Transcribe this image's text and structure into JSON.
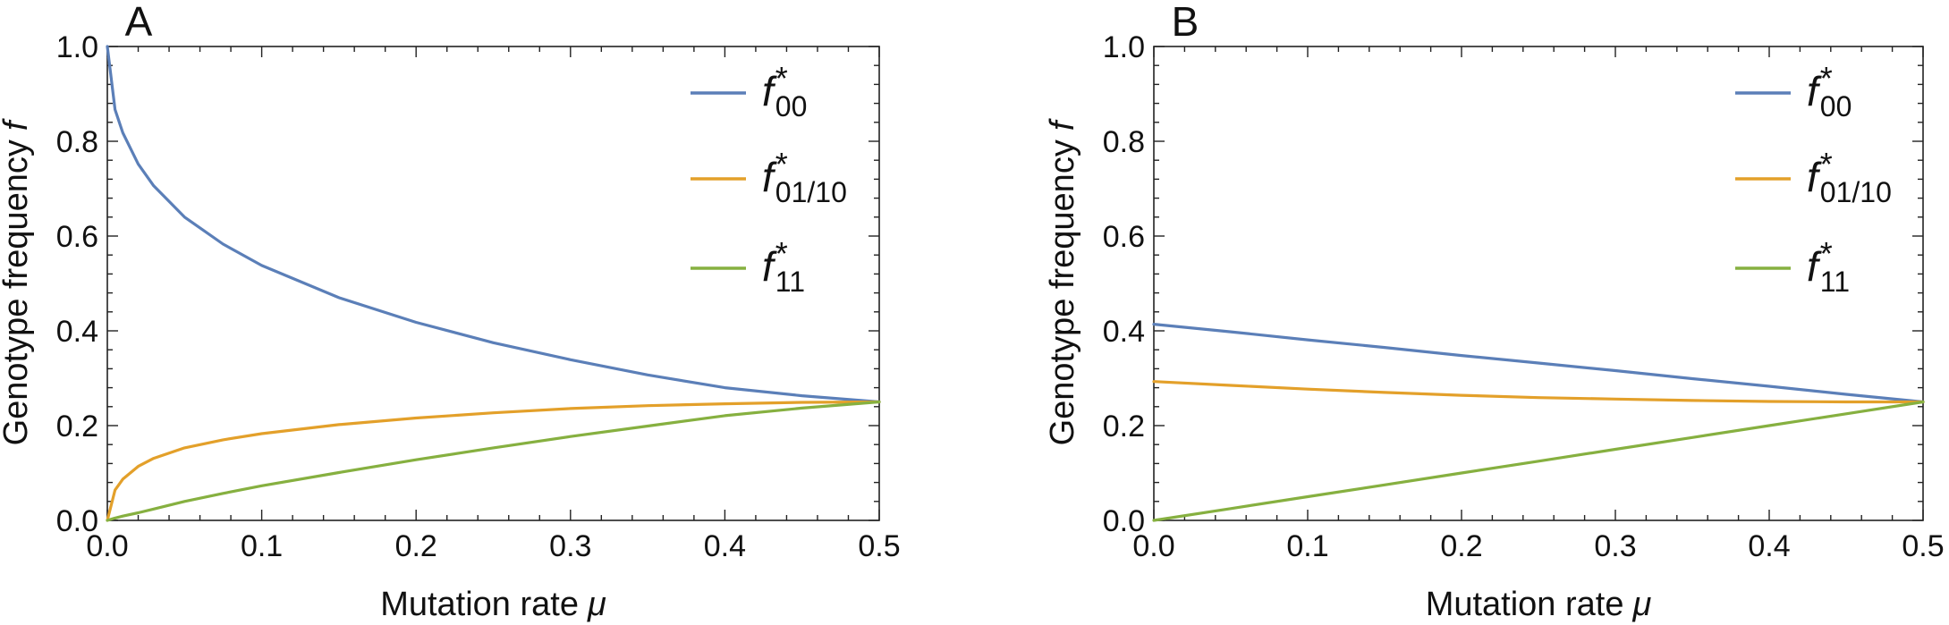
{
  "colors": {
    "f00": "#5b7fb8",
    "f01": "#e3a02a",
    "f11": "#86b040"
  },
  "chart_data": [
    {
      "type": "line",
      "panel_label": "A",
      "xlabel": "Mutation rate",
      "xlabel_symbol": "μ",
      "ylabel": "Genotype frequency",
      "ylabel_symbol": "f",
      "xlim": [
        0,
        0.5
      ],
      "ylim": [
        0,
        1.0
      ],
      "xticks": [
        "0.0",
        "0.1",
        "0.2",
        "0.3",
        "0.4",
        "0.5"
      ],
      "yticks": [
        "0.0",
        "0.2",
        "0.4",
        "0.6",
        "0.8",
        "1.0"
      ],
      "legend_position": "top-right",
      "x": [
        0,
        0.005,
        0.01,
        0.02,
        0.03,
        0.05,
        0.075,
        0.1,
        0.15,
        0.2,
        0.25,
        0.3,
        0.35,
        0.4,
        0.45,
        0.5
      ],
      "series": [
        {
          "key": "f00",
          "name_base": "f",
          "name_sup": "*",
          "name_sub": "00",
          "color": "#5b7fb8",
          "values": [
            1.0,
            0.867,
            0.818,
            0.752,
            0.706,
            0.64,
            0.583,
            0.538,
            0.47,
            0.418,
            0.375,
            0.339,
            0.307,
            0.28,
            0.263,
            0.25
          ]
        },
        {
          "key": "f01",
          "name_base": "f",
          "name_sup": "*",
          "name_sub": "01/10",
          "color": "#e3a02a",
          "values": [
            0.0,
            0.064,
            0.087,
            0.114,
            0.131,
            0.153,
            0.17,
            0.183,
            0.202,
            0.216,
            0.227,
            0.236,
            0.242,
            0.246,
            0.249,
            0.25
          ]
        },
        {
          "key": "f11",
          "name_base": "f",
          "name_sup": "*",
          "name_sub": "11",
          "color": "#86b040",
          "values": [
            0.0,
            0.005,
            0.009,
            0.016,
            0.024,
            0.04,
            0.057,
            0.073,
            0.101,
            0.128,
            0.153,
            0.177,
            0.199,
            0.221,
            0.237,
            0.25
          ]
        }
      ]
    },
    {
      "type": "line",
      "panel_label": "B",
      "xlabel": "Mutation rate",
      "xlabel_symbol": "μ",
      "ylabel": "Genotype frequency",
      "ylabel_symbol": "f",
      "xlim": [
        0,
        0.5
      ],
      "ylim": [
        0,
        1.0
      ],
      "xticks": [
        "0.0",
        "0.1",
        "0.2",
        "0.3",
        "0.4",
        "0.5"
      ],
      "yticks": [
        "0.0",
        "0.2",
        "0.4",
        "0.6",
        "0.8",
        "1.0"
      ],
      "legend_position": "top-right",
      "x": [
        0,
        0.05,
        0.1,
        0.15,
        0.2,
        0.25,
        0.3,
        0.35,
        0.4,
        0.45,
        0.5
      ],
      "series": [
        {
          "key": "f00",
          "name_base": "f",
          "name_sup": "*",
          "name_sub": "00",
          "color": "#5b7fb8",
          "values": [
            0.414,
            0.398,
            0.381,
            0.365,
            0.348,
            0.332,
            0.316,
            0.299,
            0.283,
            0.266,
            0.25
          ]
        },
        {
          "key": "f01",
          "name_base": "f",
          "name_sup": "*",
          "name_sub": "01/10",
          "color": "#e3a02a",
          "values": [
            0.293,
            0.285,
            0.277,
            0.27,
            0.264,
            0.259,
            0.256,
            0.253,
            0.251,
            0.25,
            0.25
          ]
        },
        {
          "key": "f11",
          "name_base": "f",
          "name_sup": "*",
          "name_sub": "11",
          "color": "#86b040",
          "values": [
            0.0,
            0.025,
            0.05,
            0.075,
            0.1,
            0.125,
            0.15,
            0.175,
            0.2,
            0.225,
            0.25
          ]
        }
      ]
    }
  ]
}
